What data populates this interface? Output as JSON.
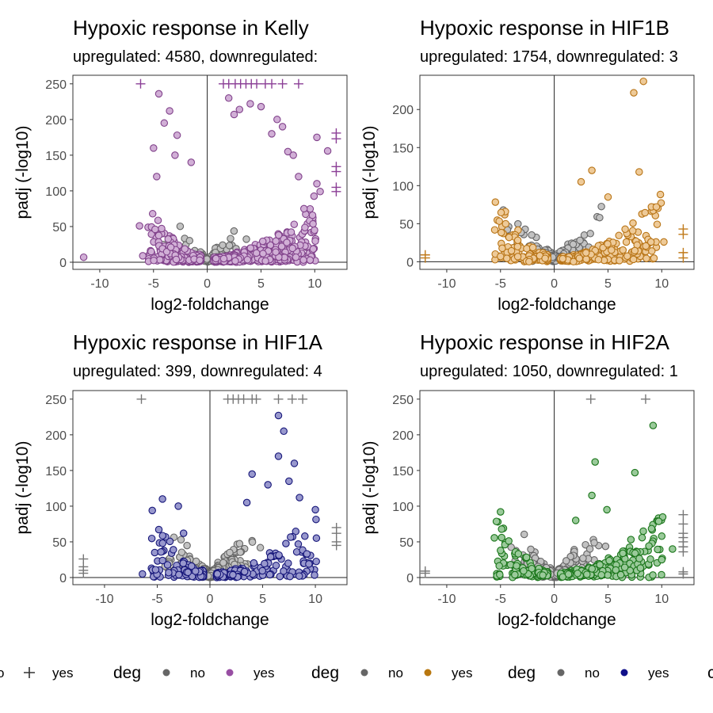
{
  "chart_data": [
    {
      "type": "scatter",
      "title": "Hypoxic response in Kelly",
      "subtitle": "upregulated: 4580, downregulated:",
      "xlabel": "log2-foldchange",
      "ylabel": "padj (-log10)",
      "xlim": [
        -12.5,
        13
      ],
      "ylim": [
        -10,
        262
      ],
      "xticks": [
        -10,
        -5,
        0,
        5,
        10
      ],
      "yticks": [
        0,
        50,
        100,
        150,
        200,
        250
      ],
      "colors": {
        "no": "#777777",
        "yes": "#984ea3"
      },
      "grid": false,
      "cloud": {
        "up_n": 420,
        "down_n": 240,
        "ns_n": 120
      },
      "series": [
        {
          "values": [
            [
              -11.5,
              7
            ],
            [
              -6.3,
              51
            ],
            [
              -6,
              9
            ],
            [
              -4.5,
              236
            ],
            [
              -4,
              195
            ],
            [
              -3.5,
              212
            ],
            [
              -2.8,
              178
            ],
            [
              -5,
              160
            ],
            [
              -4.7,
              120
            ],
            [
              -3,
              150
            ],
            [
              -1.5,
              140
            ],
            [
              2,
              230
            ],
            [
              2.5,
              207
            ],
            [
              3,
              214
            ],
            [
              4,
              222
            ],
            [
              5,
              218
            ],
            [
              6,
              180
            ],
            [
              6.5,
              200
            ],
            [
              7,
              190
            ],
            [
              7.5,
              155
            ],
            [
              8,
              150
            ],
            [
              8.5,
              120
            ],
            [
              9,
              75
            ],
            [
              10.2,
              110
            ],
            [
              10.5,
              99
            ],
            [
              11.2,
              156
            ],
            [
              10.2,
              175
            ]
          ]
        }
      ],
      "capped_markers": [
        [
          -6.2,
          250
        ],
        [
          1.5,
          250
        ],
        [
          2,
          250
        ],
        [
          2.6,
          250
        ],
        [
          3.1,
          250
        ],
        [
          3.6,
          250
        ],
        [
          4.1,
          250
        ],
        [
          4.6,
          250
        ],
        [
          5.4,
          250
        ],
        [
          6,
          250
        ],
        [
          7,
          250
        ],
        [
          8.5,
          250
        ],
        [
          12,
          181
        ],
        [
          12,
          173
        ],
        [
          12,
          134
        ],
        [
          12,
          127
        ],
        [
          12,
          105
        ],
        [
          12,
          99
        ]
      ]
    },
    {
      "type": "scatter",
      "title": "Hypoxic response in HIF1B",
      "subtitle": "upregulated: 1754, downregulated: 3",
      "xlabel": "log2-foldchange",
      "ylabel": "padj (-log10)",
      "xlim": [
        -12.5,
        13
      ],
      "ylim": [
        -10,
        245
      ],
      "xticks": [
        -10,
        -5,
        0,
        5,
        10
      ],
      "yticks": [
        0,
        50,
        100,
        150,
        200
      ],
      "colors": {
        "no": "#777777",
        "yes": "#d9891a"
      },
      "grid": false,
      "cloud": {
        "up_n": 200,
        "down_n": 120,
        "ns_n": 220
      },
      "series": [
        {
          "values": [
            [
              7.4,
              222
            ],
            [
              8.3,
              237
            ],
            [
              7.9,
              118
            ],
            [
              5,
              85
            ],
            [
              3.5,
              120
            ],
            [
              2.5,
              105
            ],
            [
              9.5,
              72
            ],
            [
              10.2,
              26
            ],
            [
              9,
              26
            ],
            [
              -5,
              7
            ]
          ]
        }
      ],
      "capped_markers": [
        [
          -12,
          9
        ],
        [
          -12,
          5
        ],
        [
          12,
          43
        ],
        [
          12,
          36
        ],
        [
          12,
          12
        ],
        [
          12,
          5
        ]
      ]
    },
    {
      "type": "scatter",
      "title": "Hypoxic response in HIF1A",
      "subtitle": "upregulated: 399, downregulated: 4",
      "xlabel": "log2-foldchange",
      "ylabel": "padj (-log10)",
      "xlim": [
        -13,
        13
      ],
      "ylim": [
        -10,
        262
      ],
      "xticks": [
        -10,
        -5,
        0,
        5,
        10
      ],
      "yticks": [
        0,
        50,
        100,
        150,
        200,
        250
      ],
      "colors": {
        "no": "#777777",
        "yes": "#1b1b8f"
      },
      "grid": false,
      "cloud": {
        "up_n": 150,
        "down_n": 90,
        "ns_n": 420
      },
      "series": [
        {
          "values": [
            [
              -6.4,
              5
            ],
            [
              -4.5,
              110
            ],
            [
              -3,
              100
            ],
            [
              -2.5,
              62
            ],
            [
              6.5,
              227
            ],
            [
              7,
              205
            ],
            [
              6.5,
              170
            ],
            [
              8,
              160
            ],
            [
              7.5,
              135
            ],
            [
              5.5,
              130
            ],
            [
              8.5,
              112
            ],
            [
              10,
              95
            ],
            [
              9,
              58
            ],
            [
              4,
              145
            ],
            [
              3.5,
              105
            ]
          ]
        }
      ],
      "capped_markers": [
        [
          -6.5,
          250
        ],
        [
          1.7,
          250
        ],
        [
          2.2,
          250
        ],
        [
          2.7,
          250
        ],
        [
          3.2,
          250
        ],
        [
          4,
          250
        ],
        [
          4.4,
          250
        ],
        [
          6.5,
          250
        ],
        [
          7.8,
          250
        ],
        [
          8.8,
          250
        ],
        [
          -12,
          26
        ],
        [
          -12,
          15
        ],
        [
          -12,
          10
        ],
        [
          -12,
          6
        ],
        [
          12,
          70
        ],
        [
          12,
          62
        ],
        [
          12,
          50
        ],
        [
          12,
          45
        ]
      ]
    },
    {
      "type": "scatter",
      "title": "Hypoxic response in HIF2A",
      "subtitle": "upregulated: 1050, downregulated: 1",
      "xlabel": "log2-foldchange",
      "ylabel": "padj (-log10)",
      "xlim": [
        -12.5,
        13
      ],
      "ylim": [
        -10,
        262
      ],
      "xticks": [
        -10,
        -5,
        0,
        5,
        10
      ],
      "yticks": [
        0,
        50,
        100,
        150,
        200,
        250
      ],
      "colors": {
        "no": "#777777",
        "yes": "#1e8a1e"
      },
      "grid": false,
      "cloud": {
        "up_n": 220,
        "down_n": 110,
        "ns_n": 320
      },
      "series": [
        {
          "values": [
            [
              9.2,
              213
            ],
            [
              7.5,
              147
            ],
            [
              4.9,
              95
            ],
            [
              3.8,
              162
            ],
            [
              3.5,
              115
            ],
            [
              2,
              80
            ],
            [
              10,
              58
            ],
            [
              11,
              40
            ],
            [
              10,
              25
            ],
            [
              -5,
              92
            ],
            [
              -5,
              38
            ]
          ]
        }
      ],
      "capped_markers": [
        [
          3.4,
          250
        ],
        [
          8.5,
          250
        ],
        [
          -12,
          9
        ],
        [
          -12,
          6
        ],
        [
          12,
          88
        ],
        [
          12,
          75
        ],
        [
          12,
          62
        ],
        [
          12,
          56
        ],
        [
          12,
          50
        ],
        [
          12,
          43
        ],
        [
          12,
          36
        ],
        [
          12,
          8
        ],
        [
          12,
          5
        ]
      ]
    }
  ],
  "legend": {
    "groups": [
      {
        "title": "",
        "items": [
          {
            "label": "o",
            "shape": "none"
          },
          {
            "label": "yes",
            "shape": "plus",
            "color": "#333333"
          }
        ]
      },
      {
        "title": "deg",
        "items": [
          {
            "label": "no",
            "shape": "dot",
            "color": "#666666"
          },
          {
            "label": "yes",
            "shape": "dot",
            "color": "#984ea3"
          }
        ]
      },
      {
        "title": "deg",
        "items": [
          {
            "label": "no",
            "shape": "dot",
            "color": "#666666"
          },
          {
            "label": "yes",
            "shape": "dot",
            "color": "#b8770f"
          }
        ]
      },
      {
        "title": "deg",
        "items": [
          {
            "label": "no",
            "shape": "dot",
            "color": "#666666"
          },
          {
            "label": "yes",
            "shape": "dot",
            "color": "#10108a"
          }
        ]
      }
    ],
    "trailing_text": "c"
  }
}
